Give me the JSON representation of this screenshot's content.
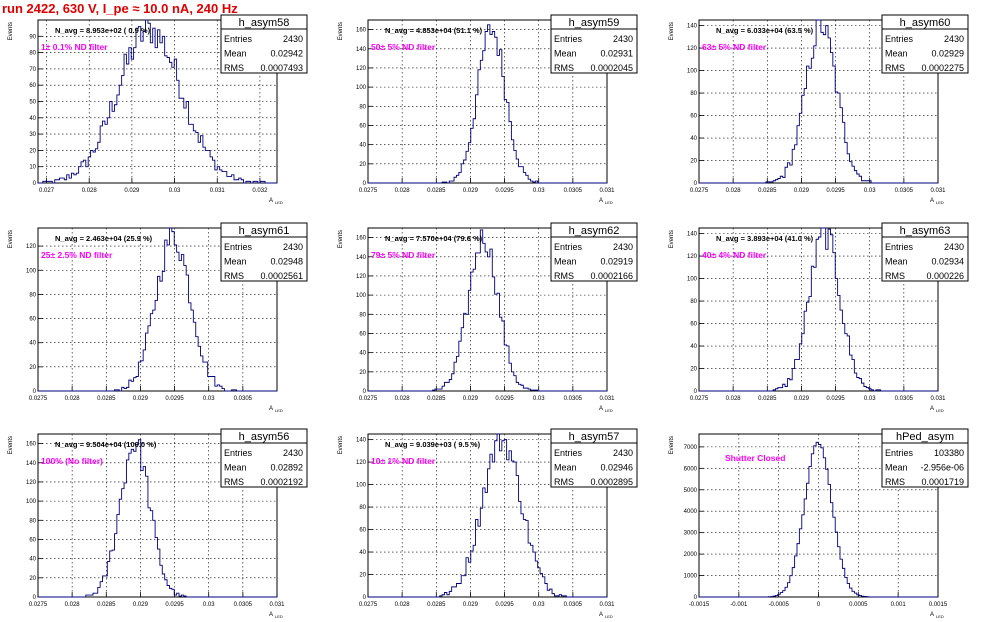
{
  "page_title": "run 2422,   630 V, I_pe ≈ 10.0 nA, 240 Hz",
  "stats_labels": {
    "entries": "Entries",
    "mean": "Mean",
    "rms": "RMS"
  },
  "axis_labels": {
    "y": "Events",
    "x_main": "A",
    "x_sub": "LED"
  },
  "colors": {
    "histogram": "#000080",
    "note": "#ff00ff",
    "title": "#e00000",
    "grid": "#000000"
  },
  "chart_data": [
    {
      "type": "histogram",
      "title": "h_asym58",
      "n_avg": "N_avg = 8.953e+02 ( 0.9 %)",
      "note": "1± 0.1% ND filter",
      "stats": {
        "entries": "2430",
        "mean": "0.02942",
        "rms": "0.0007493"
      },
      "xlim": [
        0.0268,
        0.0324
      ],
      "xticks": [
        0.027,
        0.028,
        0.029,
        0.03,
        0.031,
        0.032
      ],
      "xtick_labels": [
        "0.027",
        "0.028",
        "0.029",
        "0.03",
        "0.031",
        "0.032"
      ],
      "ylim": [
        0,
        100
      ],
      "yticks": [
        0,
        10,
        20,
        30,
        40,
        50,
        60,
        70,
        80,
        90
      ],
      "mean": 0.02942,
      "rms": 0.0007493,
      "entries": 2430,
      "peak": 94,
      "bins": 100
    },
    {
      "type": "histogram",
      "title": "h_asym59",
      "n_avg": "N_avg = 4.853e+04 (51.1 %)",
      "note": "50± 5% ND filter",
      "stats": {
        "entries": "2430",
        "mean": "0.02931",
        "rms": "0.0002045"
      },
      "xlim": [
        0.0275,
        0.031
      ],
      "xticks": [
        0.0275,
        0.028,
        0.0285,
        0.029,
        0.0295,
        0.03,
        0.0305,
        0.031
      ],
      "xtick_labels": [
        "0.0275",
        "0.028",
        "0.0285",
        "0.029",
        "0.0295",
        "0.03",
        "0.0305",
        "0.031"
      ],
      "ylim": [
        0,
        170
      ],
      "yticks": [
        0,
        20,
        40,
        60,
        80,
        100,
        120,
        140,
        160
      ],
      "mean": 0.02931,
      "rms": 0.0002045,
      "entries": 2430,
      "peak": 160,
      "bins": 100
    },
    {
      "type": "histogram",
      "title": "h_asym60",
      "n_avg": "N_avg = 6.033e+04 (63.5 %)",
      "note": "63± 5% ND filter",
      "stats": {
        "entries": "2430",
        "mean": "0.02929",
        "rms": "0.0002275"
      },
      "xlim": [
        0.0275,
        0.031
      ],
      "xticks": [
        0.0275,
        0.028,
        0.0285,
        0.029,
        0.0295,
        0.03,
        0.0305,
        0.031
      ],
      "xtick_labels": [
        "0.0275",
        "0.028",
        "0.0285",
        "0.029",
        "0.0295",
        "0.03",
        "0.0305",
        "0.031"
      ],
      "ylim": [
        0,
        145
      ],
      "yticks": [
        0,
        20,
        40,
        60,
        80,
        100,
        120,
        140
      ],
      "mean": 0.02929,
      "rms": 0.0002275,
      "entries": 2430,
      "peak": 140,
      "bins": 100
    },
    {
      "type": "histogram",
      "title": "h_asym61",
      "n_avg": "N_avg = 2.463e+04 (25.9 %)",
      "note": "25± 2.5% ND filter",
      "stats": {
        "entries": "2430",
        "mean": "0.02948",
        "rms": "0.0002561"
      },
      "xlim": [
        0.0275,
        0.031
      ],
      "xticks": [
        0.0275,
        0.028,
        0.0285,
        0.029,
        0.0295,
        0.03,
        0.0305
      ],
      "xtick_labels": [
        "0.0275",
        "0.028",
        "0.0285",
        "0.029",
        "0.0295",
        "0.03",
        "0.0305"
      ],
      "ylim": [
        0,
        135
      ],
      "yticks": [
        0,
        20,
        40,
        60,
        80,
        100,
        120
      ],
      "mean": 0.02948,
      "rms": 0.0002561,
      "entries": 2430,
      "peak": 128,
      "bins": 100
    },
    {
      "type": "histogram",
      "title": "h_asym62",
      "n_avg": "N_avg = 7.570e+04 (79.6 %)",
      "note": "79± 5% ND filter",
      "stats": {
        "entries": "2430",
        "mean": "0.02919",
        "rms": "0.0002166"
      },
      "xlim": [
        0.0275,
        0.031
      ],
      "xticks": [
        0.0275,
        0.028,
        0.0285,
        0.029,
        0.0295,
        0.03,
        0.0305,
        0.031
      ],
      "xtick_labels": [
        "0.0275",
        "0.028",
        "0.0285",
        "0.029",
        "0.0295",
        "0.03",
        "0.0305",
        "0.031"
      ],
      "ylim": [
        0,
        170
      ],
      "yticks": [
        0,
        20,
        40,
        60,
        80,
        100,
        120,
        140,
        160
      ],
      "mean": 0.02919,
      "rms": 0.0002166,
      "entries": 2430,
      "peak": 160,
      "bins": 100
    },
    {
      "type": "histogram",
      "title": "h_asym63",
      "n_avg": "N_avg = 3.893e+04 (41.0 %)",
      "note": "40± 4% ND filter",
      "stats": {
        "entries": "2430",
        "mean": "0.02934",
        "rms": "0.000226"
      },
      "xlim": [
        0.0275,
        0.031
      ],
      "xticks": [
        0.0275,
        0.028,
        0.0285,
        0.029,
        0.0295,
        0.03,
        0.0305,
        0.031
      ],
      "xtick_labels": [
        "0.0275",
        "0.028",
        "0.0285",
        "0.029",
        "0.0295",
        "0.03",
        "0.0305",
        "0.031"
      ],
      "ylim": [
        0,
        145
      ],
      "yticks": [
        0,
        20,
        40,
        60,
        80,
        100,
        120,
        140
      ],
      "mean": 0.02934,
      "rms": 0.000226,
      "entries": 2430,
      "peak": 140,
      "bins": 100
    },
    {
      "type": "histogram",
      "title": "h_asym56",
      "n_avg": "N_avg = 9.504e+04 (100.0 %)",
      "note": "100% (No filter)",
      "stats": {
        "entries": "2430",
        "mean": "0.02892",
        "rms": "0.0002192"
      },
      "xlim": [
        0.0275,
        0.031
      ],
      "xticks": [
        0.0275,
        0.028,
        0.0285,
        0.029,
        0.0295,
        0.03,
        0.0305,
        0.031
      ],
      "xtick_labels": [
        "0.0275",
        "0.028",
        "0.0285",
        "0.029",
        "0.0295",
        "0.03",
        "0.0305",
        "0.031"
      ],
      "ylim": [
        0,
        170
      ],
      "yticks": [
        0,
        20,
        40,
        60,
        80,
        100,
        120,
        140,
        160
      ],
      "mean": 0.02892,
      "rms": 0.0002192,
      "entries": 2430,
      "peak": 160,
      "bins": 100
    },
    {
      "type": "histogram",
      "title": "h_asym57",
      "n_avg": "N_avg = 9.039e+03 ( 9.5 %)",
      "note": "10± 1% ND filter",
      "stats": {
        "entries": "2430",
        "mean": "0.02946",
        "rms": "0.0002895"
      },
      "xlim": [
        0.0275,
        0.031
      ],
      "xticks": [
        0.0275,
        0.028,
        0.0285,
        0.029,
        0.0295,
        0.03,
        0.0305,
        0.031
      ],
      "xtick_labels": [
        "0.0275",
        "0.028",
        "0.0285",
        "0.029",
        "0.0295",
        "0.03",
        "0.0305",
        "0.031"
      ],
      "ylim": [
        0,
        145
      ],
      "yticks": [
        0,
        20,
        40,
        60,
        80,
        100,
        120,
        140
      ],
      "mean": 0.02946,
      "rms": 0.0002895,
      "entries": 2430,
      "peak": 140,
      "bins": 100
    },
    {
      "type": "histogram",
      "title": "hPed_asym",
      "n_avg": "",
      "note": "Shutter Closed",
      "stats": {
        "entries": "103380",
        "mean": "-2.956e-06",
        "rms": "0.0001719"
      },
      "xlim": [
        -0.0015,
        0.0015
      ],
      "xticks": [
        -0.0015,
        -0.001,
        -0.0005,
        0,
        0.0005,
        0.001,
        0.0015
      ],
      "xtick_labels": [
        "-0.0015",
        "-0.001",
        "-0.0005",
        "0",
        "0.0005",
        "0.001",
        "0.0015"
      ],
      "ylim": [
        0,
        7600
      ],
      "yticks": [
        0,
        1000,
        2000,
        3000,
        4000,
        5000,
        6000,
        7000
      ],
      "mean": -2.956e-06,
      "rms": 0.0001719,
      "entries": 103380,
      "peak": 7200,
      "bins": 100
    }
  ]
}
